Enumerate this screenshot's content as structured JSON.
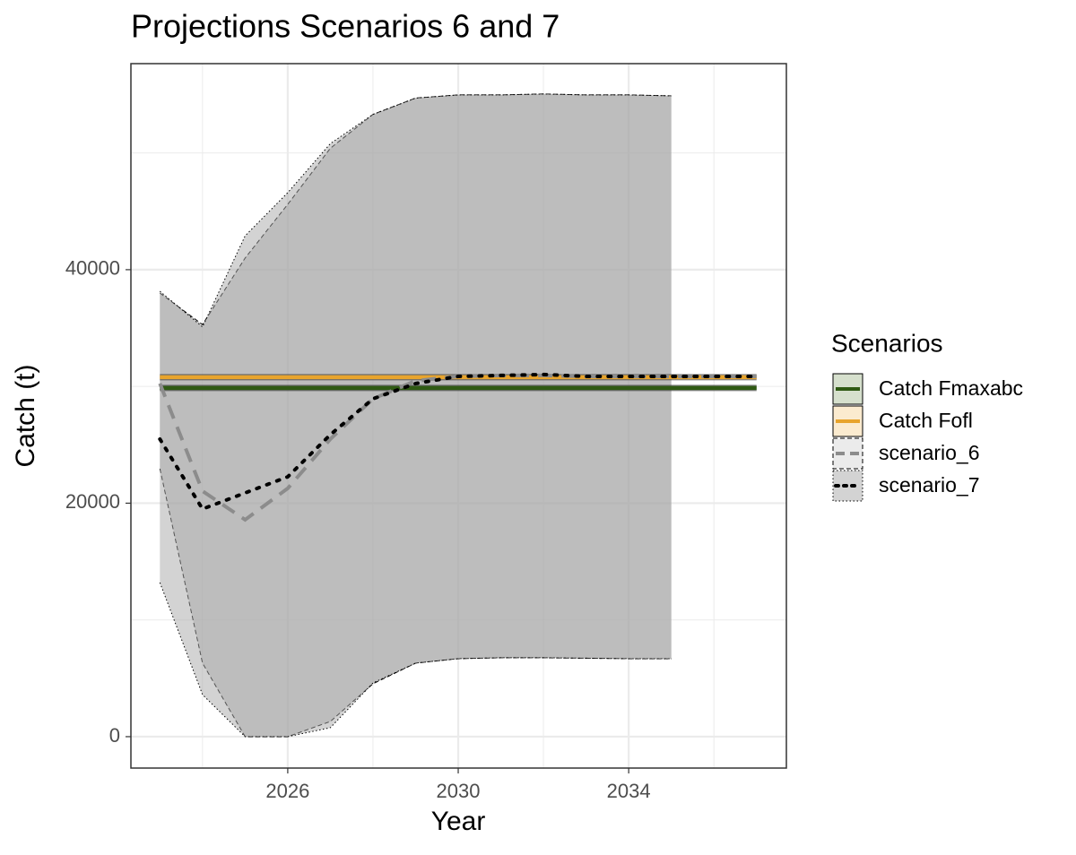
{
  "chart_data": {
    "type": "line",
    "title": "Projections Scenarios 6 and 7",
    "x_label": "Year",
    "y_label": "Catch (t)",
    "legend_title": "Scenarios",
    "legend": "right",
    "x": [
      2023,
      2024,
      2025,
      2026,
      2027,
      2028,
      2029,
      2030,
      2031,
      2032,
      2033,
      2034,
      2035,
      2036,
      2037
    ],
    "xlim": [
      2022.32,
      2037.7
    ],
    "xticks": [
      2026,
      2030,
      2034
    ],
    "x_minor_grid": [
      2024,
      2028,
      2032,
      2036
    ],
    "ylim": [
      -2690,
      57650
    ],
    "yticks": [
      0,
      20000,
      40000
    ],
    "y_minor_grid": [
      10000,
      30000,
      50000
    ],
    "grid": true,
    "series": [
      {
        "name": "Catch Fmaxabc",
        "color": "#2f5a13",
        "key_fill": "#d6e0cd",
        "linetype": "solid",
        "values": [
          29866,
          29866,
          29866,
          29866,
          29866,
          29866,
          29866,
          29866,
          29866,
          29866,
          29866,
          29866,
          29866,
          29866,
          29866
        ]
      },
      {
        "name": "Catch Fofl",
        "color": "#e8a42c",
        "key_fill": "#fbebcf",
        "linetype": "solid",
        "values": [
          30787,
          30787,
          30787,
          30787,
          30787,
          30787,
          30787,
          30787,
          30787,
          30787,
          30787,
          30787,
          30787,
          30787,
          30787
        ]
      },
      {
        "name": "scenario_6",
        "color": "#8c8c8c",
        "key_fill": "#ebebeb",
        "linetype": "dashed",
        "values": [
          30250,
          21036,
          18580,
          21270,
          25490,
          28940,
          30480,
          30860,
          30940,
          30940,
          30860,
          30860,
          30860,
          30860,
          30860
        ],
        "upper": [
          38000,
          35300,
          41000,
          45600,
          50400,
          53300,
          54700,
          54970,
          54970,
          55050,
          54970,
          54970,
          54890,
          null,
          null
        ],
        "lower": [
          22950,
          6300,
          0,
          0,
          1300,
          4530,
          6300,
          6680,
          6760,
          6760,
          6720,
          6680,
          6680,
          null,
          null
        ]
      },
      {
        "name": "scenario_7",
        "color": "#000000",
        "key_fill": "#d3d3d3",
        "linetype": "dotted",
        "values": [
          25490,
          19500,
          20880,
          22260,
          25870,
          28940,
          30250,
          30860,
          30940,
          31020,
          30860,
          30860,
          30860,
          30860,
          30860
        ],
        "upper": [
          38150,
          35100,
          42900,
          46600,
          50800,
          53300,
          54700,
          54970,
          54970,
          55050,
          54970,
          54970,
          54890,
          null,
          null
        ],
        "lower": [
          13200,
          3600,
          0,
          0,
          770,
          4600,
          6300,
          6680,
          6760,
          6760,
          6720,
          6680,
          6680,
          null,
          null
        ]
      }
    ]
  }
}
